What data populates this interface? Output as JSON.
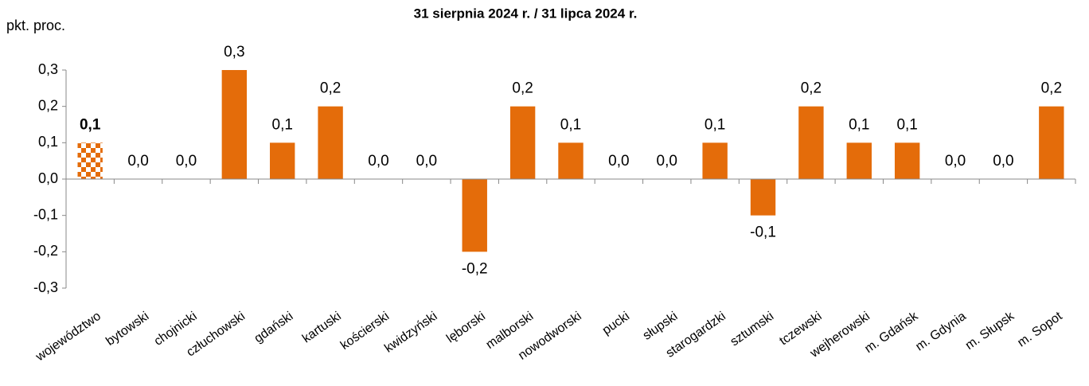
{
  "chart_data": {
    "type": "bar",
    "title": "31 sierpnia 2024 r. / 31 lipca 2024 r.",
    "y_label": "pkt. proc.",
    "categories": [
      "województwo",
      "bytowski",
      "chojnicki",
      "człuchowski",
      "gdański",
      "kartuski",
      "kościerski",
      "kwidzyński",
      "lęborski",
      "malborski",
      "nowodworski",
      "pucki",
      "słupski",
      "starogardzki",
      "sztumski",
      "tczewski",
      "wejherowski",
      "m. Gdańsk",
      "m. Gdynia",
      "m. Słupsk",
      "m. Sopot"
    ],
    "values": [
      0.1,
      0,
      0,
      0.3,
      0.1,
      0.2,
      0,
      0,
      -0.2,
      0.2,
      0.1,
      0,
      0,
      0.1,
      -0.1,
      0.2,
      0.1,
      0.1,
      0,
      0,
      0.2
    ],
    "value_labels": [
      "0,1",
      "0,0",
      "0,0",
      "0,3",
      "0,1",
      "0,2",
      "0,0",
      "0,0",
      "-0,2",
      "0,2",
      "0,1",
      "0,0",
      "0,0",
      "0,1",
      "-0,1",
      "0,2",
      "0,1",
      "0,1",
      "0,0",
      "0,0",
      "0,2"
    ],
    "color": "#e46c0a",
    "ylim": [
      -0.3,
      0.3
    ],
    "yticks": [
      {
        "value": -0.3,
        "label": "-0,3"
      },
      {
        "value": -0.2,
        "label": "-0,2"
      },
      {
        "value": -0.1,
        "label": "-0,1"
      },
      {
        "value": 0,
        "label": "0,0"
      },
      {
        "value": 0.1,
        "label": "0,1"
      },
      {
        "value": 0.2,
        "label": "0,2"
      },
      {
        "value": 0.3,
        "label": "0,3"
      }
    ],
    "grid": false
  }
}
